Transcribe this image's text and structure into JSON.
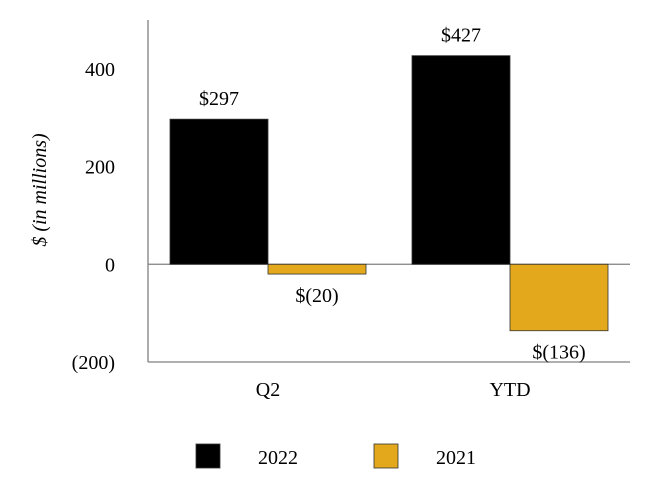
{
  "chart_data": {
    "type": "bar",
    "categories": [
      "Q2",
      "YTD"
    ],
    "series": [
      {
        "name": "2022",
        "values": [
          297,
          427
        ],
        "labels": [
          "$297",
          "$427"
        ],
        "color": "#000000"
      },
      {
        "name": "2021",
        "values": [
          -20,
          -136
        ],
        "labels": [
          "$(20)",
          "$(136)"
        ],
        "color": "#E3A81C"
      }
    ],
    "title": "",
    "xlabel": "",
    "ylabel": "$ (in millions)",
    "ylim": [
      -200,
      500
    ],
    "yticks": [
      400,
      200,
      0,
      -200
    ],
    "ytick_labels": [
      "400",
      "200",
      "0",
      "(200)"
    ],
    "grid": false,
    "legend": {
      "position": "bottom",
      "entries": [
        "2022",
        "2021"
      ]
    },
    "colors": {
      "series_2022": "#000000",
      "series_2021": "#E3A81C",
      "axis": "#808080"
    }
  }
}
